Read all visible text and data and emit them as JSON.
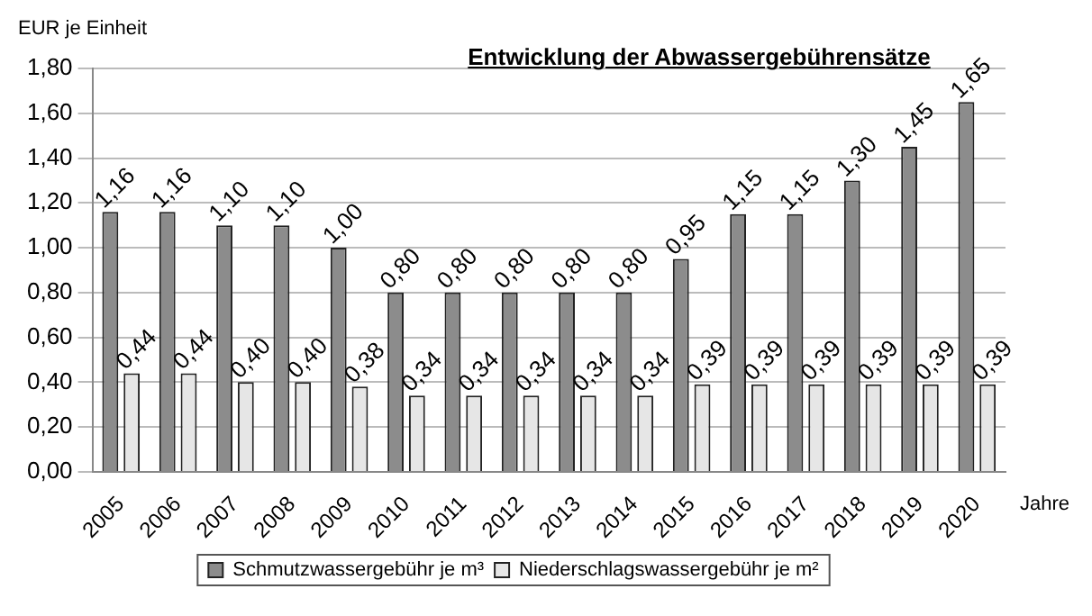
{
  "chart_data": {
    "type": "bar",
    "title": "Entwicklung der Abwassergebührensätze",
    "ylabel": "EUR je Einheit",
    "xlabel": "Jahre",
    "categories": [
      "2005",
      "2006",
      "2007",
      "2008",
      "2009",
      "2010",
      "2011",
      "2012",
      "2013",
      "2014",
      "2015",
      "2016",
      "2017",
      "2018",
      "2019",
      "2020"
    ],
    "series": [
      {
        "name": "Schmutzwassergebühr je m³",
        "color": "#8c8c8c",
        "values": [
          1.16,
          1.16,
          1.1,
          1.1,
          1.0,
          0.8,
          0.8,
          0.8,
          0.8,
          0.8,
          0.95,
          1.15,
          1.15,
          1.3,
          1.45,
          1.65
        ],
        "value_labels": [
          "1,16",
          "1,16",
          "1,10",
          "1,10",
          "1,00",
          "0,80",
          "0,80",
          "0,80",
          "0,80",
          "0,80",
          "0,95",
          "1,15",
          "1,15",
          "1,30",
          "1,45",
          "1,65"
        ]
      },
      {
        "name": "Niederschlagswassergebühr je m²",
        "color": "#e6e6e6",
        "values": [
          0.44,
          0.44,
          0.4,
          0.4,
          0.38,
          0.34,
          0.34,
          0.34,
          0.34,
          0.34,
          0.39,
          0.39,
          0.39,
          0.39,
          0.39,
          0.39
        ],
        "value_labels": [
          "0,44",
          "0,44",
          "0,40",
          "0,40",
          "0,38",
          "0,34",
          "0,34",
          "0,34",
          "0,34",
          "0,34",
          "0,39",
          "0,39",
          "0,39",
          "0,39",
          "0,39",
          "0,39"
        ]
      }
    ],
    "ylim": [
      0,
      1.8
    ],
    "yticks": [
      {
        "value": 0,
        "label": "0,00"
      },
      {
        "value": 0.2,
        "label": "0,20"
      },
      {
        "value": 0.4,
        "label": "0,40"
      },
      {
        "value": 0.6,
        "label": "0,60"
      },
      {
        "value": 0.8,
        "label": "0,80"
      },
      {
        "value": 1.0,
        "label": "1,00"
      },
      {
        "value": 1.2,
        "label": "1,20"
      },
      {
        "value": 1.4,
        "label": "1,40"
      },
      {
        "value": 1.6,
        "label": "1,60"
      },
      {
        "value": 1.8,
        "label": "1,80"
      }
    ],
    "grid": "y",
    "legend": "bottom"
  }
}
